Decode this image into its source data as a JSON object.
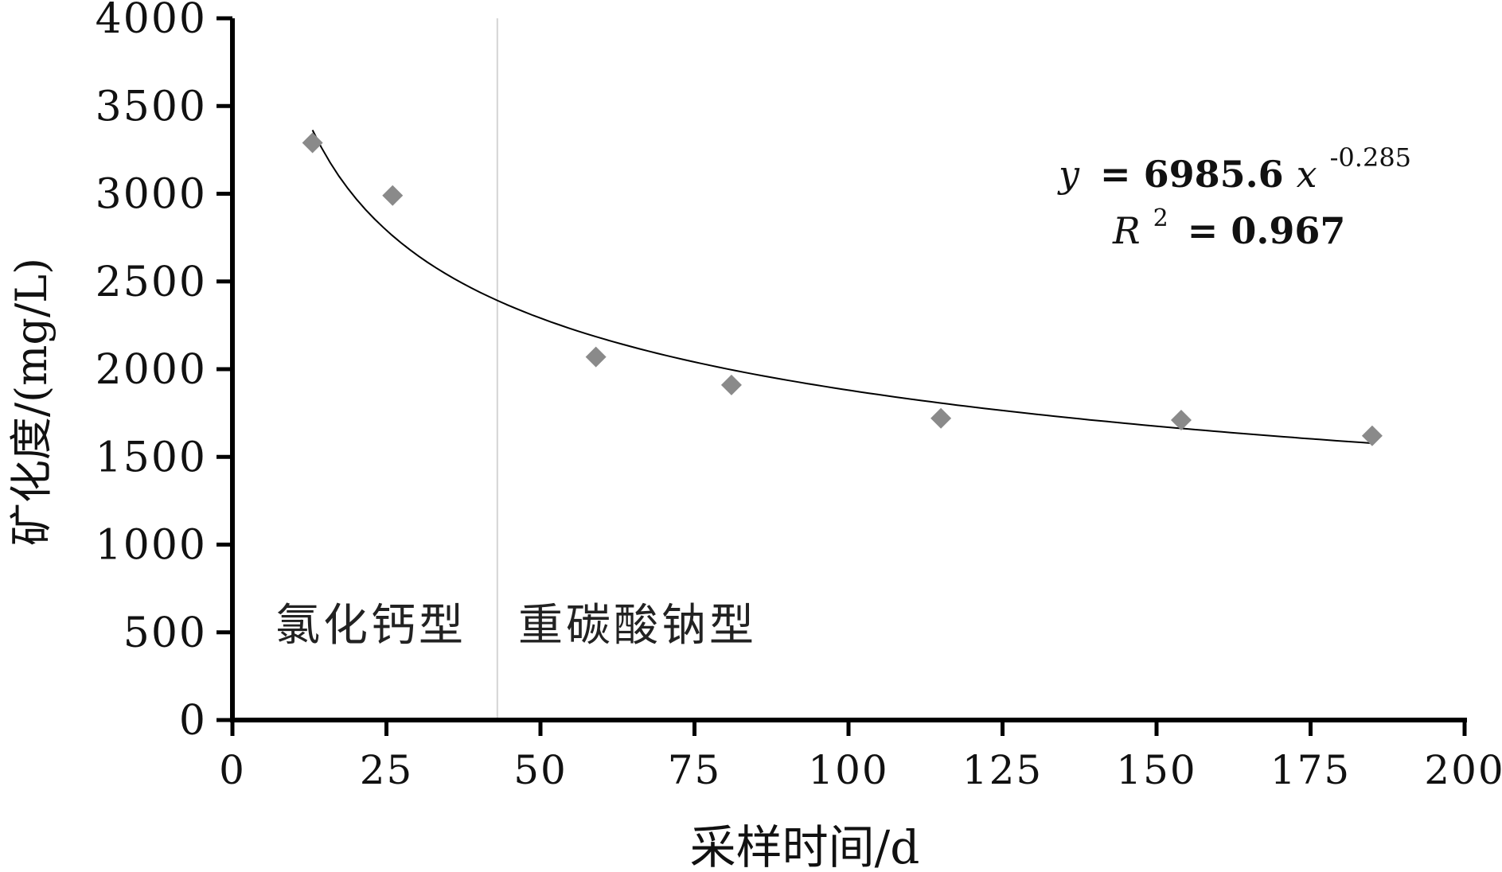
{
  "chart_data": {
    "type": "scatter",
    "xlabel": "采样时间/d",
    "ylabel": "矿化度/(mg/L)",
    "xlim": [
      0,
      200
    ],
    "ylim": [
      0,
      4000
    ],
    "x_ticks": [
      "0",
      "25",
      "50",
      "75",
      "100",
      "125",
      "150",
      "175",
      "200"
    ],
    "y_ticks": [
      "0",
      "500",
      "1000",
      "1500",
      "2000",
      "2500",
      "3000",
      "3500",
      "4000"
    ],
    "series": [
      {
        "x": [
          13,
          26,
          59,
          81,
          115,
          154,
          185
        ],
        "y": [
          3290,
          2990,
          2070,
          1910,
          1720,
          1710,
          1620
        ],
        "color": "#8a8a8a",
        "marker": "diamond"
      }
    ],
    "trendline": {
      "type": "power",
      "a": 6985.6,
      "b": -0.285,
      "x_range": [
        13,
        185
      ],
      "equation_lhs": "y",
      "equation_rhs": "= 6985.6",
      "equation_var": "x",
      "equation_exp": "-0.285",
      "r2_label": "R",
      "r2_sup": "2",
      "r2_value": "= 0.967"
    },
    "divider_x": 43,
    "regions": [
      "氯化钙型",
      "重碳酸钠型"
    ],
    "grid": false
  }
}
